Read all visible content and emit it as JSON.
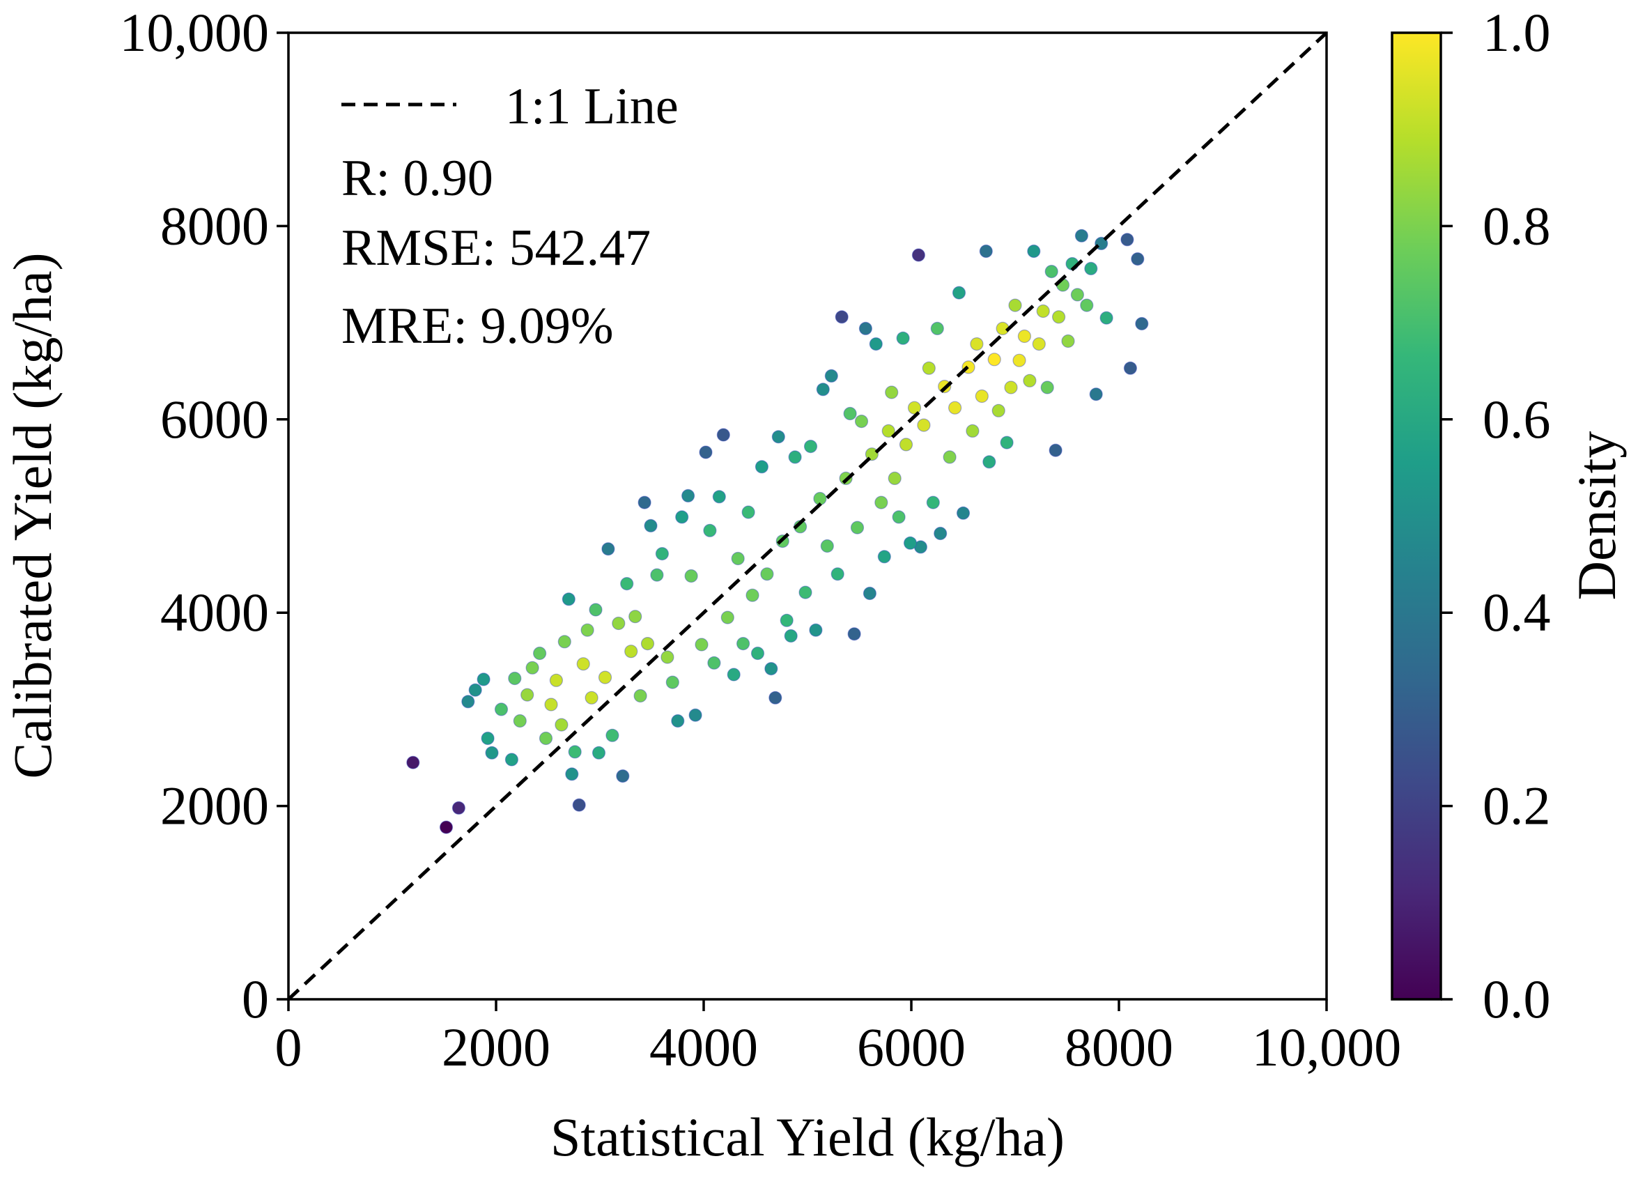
{
  "chart_data": {
    "type": "scatter",
    "title": "",
    "xlabel": "Statistical Yield (kg/ha)",
    "ylabel": "Calibrated Yield (kg/ha)",
    "xlim": [
      0,
      10000
    ],
    "ylim": [
      0,
      10000
    ],
    "x_ticks": [
      0,
      2000,
      4000,
      6000,
      8000,
      10000
    ],
    "x_tick_labels": [
      "0",
      "2000",
      "4000",
      "6000",
      "8000",
      "10,000"
    ],
    "y_ticks": [
      0,
      2000,
      4000,
      6000,
      8000,
      10000
    ],
    "y_tick_labels": [
      "0",
      "2000",
      "4000",
      "6000",
      "8000",
      "10,000"
    ],
    "grid": false,
    "reference_line": {
      "label": "1:1 Line",
      "from": [
        0,
        0
      ],
      "to": [
        10000,
        10000
      ],
      "style": "dashed",
      "color": "#000000"
    },
    "legend": {
      "position": "top-left",
      "entries": [
        "1:1 Line"
      ]
    },
    "stats": [
      {
        "label": "R",
        "value": "0.90",
        "text": "R: 0.90"
      },
      {
        "label": "RMSE",
        "value": "542.47",
        "text": "RMSE: 542.47"
      },
      {
        "label": "MRE",
        "value": "9.09%",
        "text": "MRE: 9.09%"
      }
    ],
    "colorbar": {
      "label": "Density",
      "range": [
        0,
        1
      ],
      "ticks": [
        0,
        0.2,
        0.4,
        0.6,
        0.8,
        1.0
      ],
      "tick_labels": [
        "0.0",
        "0.2",
        "0.4",
        "0.6",
        "0.8",
        "1.0"
      ],
      "colormap": "viridis",
      "colors": [
        "#440154",
        "#482878",
        "#3e4989",
        "#31688e",
        "#26828e",
        "#1f9e89",
        "#35b779",
        "#6ece58",
        "#b5de2b",
        "#fde725"
      ]
    },
    "points": [
      [
        1200,
        2450
      ],
      [
        1520,
        1780
      ],
      [
        1640,
        1980
      ],
      [
        1730,
        3080
      ],
      [
        1800,
        3200
      ],
      [
        1880,
        3310
      ],
      [
        1920,
        2700
      ],
      [
        1960,
        2550
      ],
      [
        2050,
        3000
      ],
      [
        2150,
        2480
      ],
      [
        2180,
        3320
      ],
      [
        2230,
        2880
      ],
      [
        2300,
        3150
      ],
      [
        2350,
        3430
      ],
      [
        2420,
        3580
      ],
      [
        2480,
        2700
      ],
      [
        2530,
        3050
      ],
      [
        2580,
        3300
      ],
      [
        2630,
        2840
      ],
      [
        2660,
        3700
      ],
      [
        2700,
        4140
      ],
      [
        2730,
        2330
      ],
      [
        2760,
        2560
      ],
      [
        2800,
        2010
      ],
      [
        2840,
        3470
      ],
      [
        2880,
        3820
      ],
      [
        2920,
        3120
      ],
      [
        2960,
        4030
      ],
      [
        2990,
        2550
      ],
      [
        3050,
        3330
      ],
      [
        3080,
        4660
      ],
      [
        3120,
        2730
      ],
      [
        3180,
        3890
      ],
      [
        3220,
        2310
      ],
      [
        3260,
        4300
      ],
      [
        3300,
        3600
      ],
      [
        3340,
        3960
      ],
      [
        3390,
        3140
      ],
      [
        3430,
        5140
      ],
      [
        3460,
        3680
      ],
      [
        3490,
        4900
      ],
      [
        3550,
        4390
      ],
      [
        3600,
        4610
      ],
      [
        3650,
        3540
      ],
      [
        3700,
        3280
      ],
      [
        3750,
        2880
      ],
      [
        3790,
        4990
      ],
      [
        3850,
        5210
      ],
      [
        3880,
        4380
      ],
      [
        3920,
        2940
      ],
      [
        3980,
        3670
      ],
      [
        4020,
        5660
      ],
      [
        4060,
        4850
      ],
      [
        4100,
        3480
      ],
      [
        4150,
        5200
      ],
      [
        4190,
        5840
      ],
      [
        4230,
        3950
      ],
      [
        4290,
        3360
      ],
      [
        4330,
        4560
      ],
      [
        4380,
        3680
      ],
      [
        4430,
        5040
      ],
      [
        4470,
        4180
      ],
      [
        4520,
        3580
      ],
      [
        4560,
        5510
      ],
      [
        4610,
        4400
      ],
      [
        4650,
        3420
      ],
      [
        4690,
        3120
      ],
      [
        4720,
        5820
      ],
      [
        4760,
        4740
      ],
      [
        4800,
        3920
      ],
      [
        4840,
        3760
      ],
      [
        4880,
        5610
      ],
      [
        4930,
        4890
      ],
      [
        4980,
        4210
      ],
      [
        5030,
        5720
      ],
      [
        5080,
        3820
      ],
      [
        5120,
        5180
      ],
      [
        5150,
        6310
      ],
      [
        5190,
        4690
      ],
      [
        5230,
        6450
      ],
      [
        5290,
        4400
      ],
      [
        5330,
        7060
      ],
      [
        5370,
        5390
      ],
      [
        5410,
        6060
      ],
      [
        5450,
        3780
      ],
      [
        5480,
        4880
      ],
      [
        5520,
        5980
      ],
      [
        5560,
        6940
      ],
      [
        5600,
        4200
      ],
      [
        5620,
        5640
      ],
      [
        5660,
        6780
      ],
      [
        5710,
        5140
      ],
      [
        5740,
        4580
      ],
      [
        5780,
        5880
      ],
      [
        5810,
        6280
      ],
      [
        5840,
        5390
      ],
      [
        5880,
        4990
      ],
      [
        5920,
        6840
      ],
      [
        5950,
        5740
      ],
      [
        5990,
        4720
      ],
      [
        6030,
        6120
      ],
      [
        6070,
        7700
      ],
      [
        6090,
        4680
      ],
      [
        6120,
        5940
      ],
      [
        6170,
        6530
      ],
      [
        6210,
        5140
      ],
      [
        6250,
        6940
      ],
      [
        6280,
        4820
      ],
      [
        6320,
        6340
      ],
      [
        6370,
        5610
      ],
      [
        6420,
        6120
      ],
      [
        6460,
        7310
      ],
      [
        6500,
        5030
      ],
      [
        6550,
        6540
      ],
      [
        6590,
        5880
      ],
      [
        6630,
        6780
      ],
      [
        6680,
        6240
      ],
      [
        6720,
        7740
      ],
      [
        6750,
        5560
      ],
      [
        6800,
        6620
      ],
      [
        6840,
        6090
      ],
      [
        6880,
        6940
      ],
      [
        6920,
        5760
      ],
      [
        6960,
        6330
      ],
      [
        7000,
        7180
      ],
      [
        7040,
        6610
      ],
      [
        7090,
        6860
      ],
      [
        7140,
        6400
      ],
      [
        7180,
        7740
      ],
      [
        7230,
        6780
      ],
      [
        7270,
        7120
      ],
      [
        7310,
        6330
      ],
      [
        7350,
        7530
      ],
      [
        7390,
        5680
      ],
      [
        7420,
        7060
      ],
      [
        7460,
        7390
      ],
      [
        7510,
        6810
      ],
      [
        7550,
        7610
      ],
      [
        7600,
        7290
      ],
      [
        7640,
        7900
      ],
      [
        7690,
        7180
      ],
      [
        7730,
        7560
      ],
      [
        7780,
        6260
      ],
      [
        7830,
        7820
      ],
      [
        7880,
        7050
      ],
      [
        8080,
        7860
      ],
      [
        8110,
        6530
      ],
      [
        8180,
        7660
      ],
      [
        8220,
        6990
      ]
    ]
  }
}
